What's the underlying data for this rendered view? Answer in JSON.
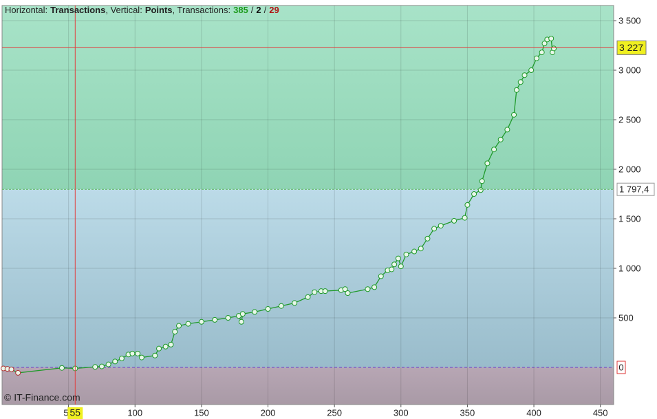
{
  "chart_data": {
    "type": "line",
    "header": [
      "Horizontal:",
      "Transactions",
      ", Vertical:",
      "Points",
      ", Transactions:"
    ],
    "stats": [
      385,
      2,
      29
    ],
    "stats_colors": [
      "#1a9a1a",
      "#111111",
      "#b01010"
    ],
    "stats_separator": "/",
    "watermark": "© IT-Finance.com",
    "x": [
      1,
      4,
      7,
      12,
      45,
      55,
      70,
      75,
      80,
      85,
      90,
      95,
      98,
      102,
      105,
      115,
      118,
      123,
      127,
      130,
      133,
      140,
      150,
      160,
      170,
      178,
      180,
      181,
      190,
      200,
      210,
      220,
      230,
      235,
      240,
      243,
      255,
      258,
      260,
      275,
      280,
      285,
      290,
      293,
      295,
      298,
      300,
      304,
      310,
      315,
      320,
      325,
      330,
      340,
      348,
      350,
      355,
      360,
      361,
      365,
      370,
      375,
      380,
      385,
      387,
      390,
      393,
      398,
      402,
      406,
      408,
      410,
      413,
      414,
      415
    ],
    "values": [
      -10,
      -15,
      -20,
      -55,
      -5,
      -10,
      5,
      10,
      30,
      60,
      90,
      130,
      140,
      140,
      100,
      120,
      190,
      210,
      230,
      360,
      420,
      440,
      460,
      480,
      500,
      520,
      460,
      540,
      560,
      590,
      620,
      650,
      710,
      760,
      770,
      770,
      780,
      790,
      750,
      790,
      810,
      920,
      980,
      990,
      1040,
      1100,
      1020,
      1140,
      1170,
      1200,
      1300,
      1400,
      1430,
      1480,
      1510,
      1640,
      1750,
      1790,
      1880,
      2060,
      2200,
      2300,
      2400,
      2550,
      2800,
      2880,
      2950,
      3000,
      3120,
      3180,
      3270,
      3310,
      3320,
      3180,
      3220
    ],
    "color": "#1f9a2a",
    "xlim": [
      0,
      460
    ],
    "ylim": [
      -375,
      3653
    ],
    "xticks": [
      50,
      100,
      150,
      200,
      250,
      300,
      350,
      400,
      450
    ],
    "yticks": [
      0,
      500,
      {
        "value": 1000,
        "label": "1 000"
      },
      {
        "value": 1500,
        "label": "1 500"
      },
      {
        "value": 2000,
        "label": "2 000"
      },
      {
        "value": 2500,
        "label": "2 500"
      },
      {
        "value": 3000,
        "label": "3 000"
      },
      {
        "value": 3500,
        "label": "3 500"
      }
    ],
    "grid": true,
    "level": {
      "value": 1797.4,
      "label": "1 797,4"
    },
    "crosshair": {
      "x": 55,
      "y": {
        "value": 3227,
        "label": "3 227"
      }
    }
  }
}
